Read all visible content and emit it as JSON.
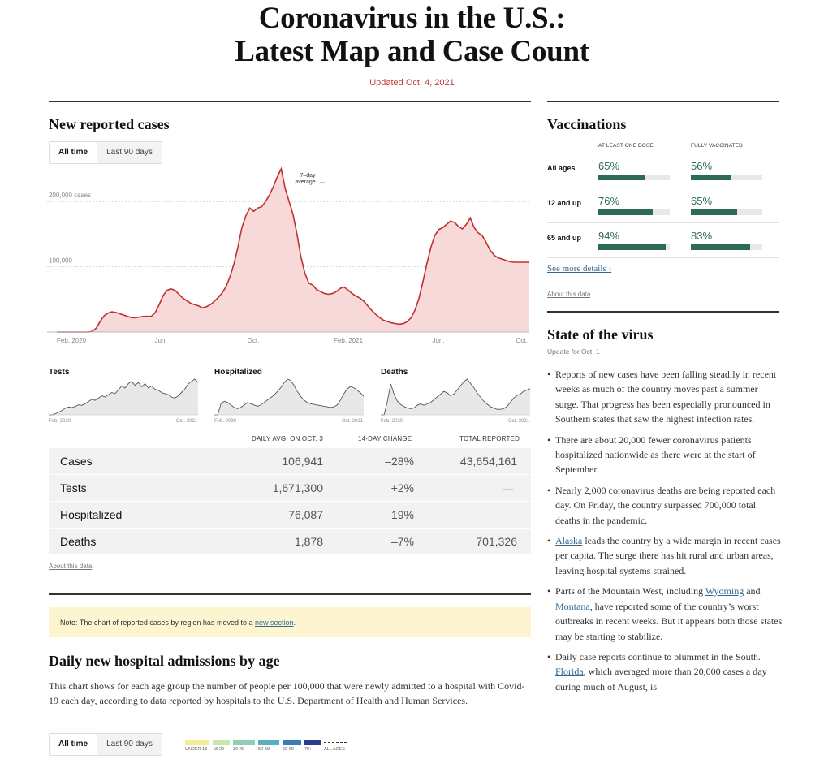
{
  "header": {
    "title_line1": "Coronavirus in the U.S.:",
    "title_line2": "Latest Map and Case Count",
    "updated": "Updated Oct. 4, 2021"
  },
  "cases_section": {
    "title": "New reported cases",
    "toggle": [
      "All time",
      "Last 90 days"
    ]
  },
  "chart_data": [
    {
      "type": "area",
      "title": "New reported cases",
      "annotation": "7–day average",
      "x_tick_labels": [
        "Feb. 2020",
        "Jun.",
        "Oct.",
        "Feb. 2021",
        "Jun.",
        "Oct."
      ],
      "y_tick_labels": [
        "200,000 cases",
        "100,000"
      ],
      "ylim": [
        0,
        260000
      ],
      "x_months": [
        0,
        1,
        2,
        3,
        4,
        5,
        6,
        7,
        8,
        9,
        10,
        11,
        12,
        13,
        14,
        15,
        16,
        17,
        18,
        19,
        20,
        21,
        22,
        23,
        24,
        25,
        26,
        27,
        28,
        29,
        30,
        31,
        32,
        33,
        34,
        35,
        36,
        37,
        38,
        39,
        40,
        41,
        42,
        43,
        44,
        45,
        46,
        47,
        48,
        49,
        50,
        51,
        52,
        53,
        54,
        55,
        56,
        57,
        58,
        59,
        60,
        61,
        62,
        63,
        64,
        65,
        66,
        67,
        68,
        69,
        70,
        71,
        72,
        73,
        74,
        75,
        76,
        77,
        78,
        79,
        80,
        81,
        82,
        83,
        84,
        85,
        86,
        87,
        88,
        89,
        90,
        91,
        92,
        93,
        94,
        95,
        96,
        97,
        98,
        99,
        100,
        101,
        102,
        103,
        104,
        105,
        106,
        107,
        108,
        109,
        110,
        111,
        112,
        113,
        114,
        115,
        116,
        117,
        118,
        119,
        120
      ],
      "values": [
        0,
        0,
        0,
        0,
        0,
        0,
        0,
        0,
        0,
        1000,
        6000,
        16000,
        25000,
        29000,
        31000,
        30000,
        28000,
        26000,
        24000,
        22000,
        22000,
        23000,
        24000,
        24000,
        24000,
        30000,
        42000,
        56000,
        64000,
        66000,
        64000,
        58000,
        52000,
        48000,
        44000,
        42000,
        40000,
        37000,
        39000,
        42000,
        47000,
        53000,
        60000,
        70000,
        85000,
        105000,
        130000,
        160000,
        178000,
        190000,
        185000,
        190000,
        192000,
        200000,
        210000,
        223000,
        238000,
        250000,
        220000,
        200000,
        180000,
        150000,
        115000,
        90000,
        75000,
        72000,
        65000,
        62000,
        59000,
        58000,
        59000,
        62000,
        67000,
        69000,
        64000,
        59000,
        55000,
        52000,
        47000,
        40000,
        33000,
        27000,
        22000,
        18000,
        16000,
        14000,
        13000,
        12000,
        13000,
        16000,
        22000,
        34000,
        52000,
        78000,
        105000,
        130000,
        148000,
        157000,
        160000,
        165000,
        170000,
        168000,
        162000,
        158000,
        165000,
        175000,
        160000,
        152000,
        148000,
        138000,
        126000,
        118000,
        114000,
        112000,
        110000,
        108000,
        107000,
        106941,
        106941,
        106941,
        106941
      ],
      "y_label_values": [
        200000,
        100000
      ]
    },
    {
      "type": "area",
      "title": "Tests",
      "x_tick_labels": [
        "Feb. 2020",
        "Oct. 2021"
      ],
      "values": [
        0,
        0,
        2,
        5,
        8,
        12,
        14,
        13,
        15,
        18,
        17,
        20,
        24,
        28,
        26,
        30,
        34,
        32,
        36,
        40,
        38,
        45,
        52,
        48,
        56,
        60,
        53,
        58,
        50,
        56,
        48,
        52,
        46,
        44,
        40,
        38,
        36,
        32,
        30,
        34,
        40,
        46,
        55,
        60,
        64,
        58
      ]
    },
    {
      "type": "area",
      "title": "Hospitalized",
      "x_tick_labels": [
        "Feb. 2020",
        "Oct. 2021"
      ],
      "values": [
        0,
        0,
        18,
        22,
        20,
        16,
        12,
        10,
        12,
        16,
        20,
        18,
        16,
        14,
        16,
        20,
        24,
        28,
        32,
        38,
        44,
        52,
        58,
        56,
        48,
        38,
        30,
        24,
        20,
        18,
        17,
        16,
        15,
        14,
        13,
        12,
        13,
        16,
        24,
        34,
        42,
        46,
        44,
        40,
        36,
        30
      ]
    },
    {
      "type": "area",
      "title": "Deaths",
      "x_tick_labels": [
        "Feb. 2020",
        "Oct. 2021"
      ],
      "values": [
        0,
        0,
        20,
        45,
        30,
        20,
        15,
        12,
        10,
        9,
        10,
        14,
        16,
        14,
        16,
        18,
        22,
        26,
        30,
        34,
        32,
        28,
        30,
        36,
        42,
        48,
        52,
        46,
        40,
        32,
        26,
        20,
        16,
        12,
        10,
        8,
        8,
        9,
        12,
        18,
        24,
        28,
        30,
        34,
        36,
        38
      ]
    }
  ],
  "mini_charts": {
    "tests": {
      "title": "Tests",
      "x_start": "Feb. 2020",
      "x_end": "Oct. 2021"
    },
    "hospitalized": {
      "title": "Hospitalized",
      "x_start": "Feb. 2020",
      "x_end": "Oct. 2021"
    },
    "deaths": {
      "title": "Deaths",
      "x_start": "Feb. 2020",
      "x_end": "Oct. 2021"
    }
  },
  "summary_table": {
    "headers": [
      "DAILY AVG. ON OCT. 3",
      "14-DAY CHANGE",
      "TOTAL REPORTED"
    ],
    "rows": [
      {
        "label": "Cases",
        "daily": "106,941",
        "change": "–28%",
        "total": "43,654,161"
      },
      {
        "label": "Tests",
        "daily": "1,671,300",
        "change": "+2%",
        "total": ""
      },
      {
        "label": "Hospitalized",
        "daily": "76,087",
        "change": "–19%",
        "total": ""
      },
      {
        "label": "Deaths",
        "daily": "1,878",
        "change": "–7%",
        "total": "701,326"
      }
    ],
    "about": "About this data"
  },
  "note": {
    "text": "Note: The chart of reported cases by region has moved to a ",
    "link": "new section",
    "end": "."
  },
  "hospital_section": {
    "title": "Daily new hospital admissions by age",
    "description": "This chart shows for each age group the number of people per 100,000 that were newly admitted to a hospital with Covid-19 each day, according to data reported by hospitals to the U.S. Department of Health and Human Services.",
    "toggle": [
      "All time",
      "Last 90 days"
    ],
    "legend": [
      {
        "label": "UNDER 18",
        "color": "#f3ec9b"
      },
      {
        "label": "18-29",
        "color": "#cde6a9"
      },
      {
        "label": "30-49",
        "color": "#8fcfb4"
      },
      {
        "label": "50-59",
        "color": "#57afc1"
      },
      {
        "label": "60-69",
        "color": "#3b7cb6"
      },
      {
        "label": "70+",
        "color": "#2a3a8f"
      },
      {
        "label": "ALL AGES",
        "color": "#333333"
      }
    ]
  },
  "vaccinations": {
    "title": "Vaccinations",
    "col1": "AT LEAST ONE DOSE",
    "col2": "FULLY VACCINATED",
    "rows": [
      {
        "label": "All ages",
        "one_dose": "65%",
        "one_dose_frac": 0.65,
        "full": "56%",
        "full_frac": 0.56
      },
      {
        "label": "12 and up",
        "one_dose": "76%",
        "one_dose_frac": 0.76,
        "full": "65%",
        "full_frac": 0.65
      },
      {
        "label": "65 and up",
        "one_dose": "94%",
        "one_dose_frac": 0.94,
        "full": "83%",
        "full_frac": 0.83
      }
    ],
    "details_link": "See more details ›",
    "about": "About this data"
  },
  "state_of_virus": {
    "title": "State of the virus",
    "updated": "Update for Oct. 1",
    "bullets": [
      {
        "parts": [
          {
            "t": "Reports of new cases have been falling steadily in recent weeks as much of the country moves past a summer surge. That progress has been especially pronounced in Southern states that saw the highest infection rates."
          }
        ]
      },
      {
        "parts": [
          {
            "t": "There are about 20,000 fewer coronavirus patients hospitalized nationwide as there were at the start of September."
          }
        ]
      },
      {
        "parts": [
          {
            "t": "Nearly 2,000 coronavirus deaths are being reported each day. On Friday, the country surpassed 700,000 total deaths in the pandemic."
          }
        ]
      },
      {
        "parts": [
          {
            "t": "Alaska",
            "link": true
          },
          {
            "t": " leads the country by a wide margin in recent cases per capita. The surge there has hit rural and urban areas, leaving hospital systems strained."
          }
        ]
      },
      {
        "parts": [
          {
            "t": "Parts of the Mountain West, including "
          },
          {
            "t": "Wyoming",
            "link": true
          },
          {
            "t": " and "
          },
          {
            "t": "Montana",
            "link": true
          },
          {
            "t": ", have reported some of the country’s worst outbreaks in recent weeks. But it appears both those states may be starting to stabilize."
          }
        ]
      },
      {
        "parts": [
          {
            "t": "Daily case reports continue to plummet in the South. "
          },
          {
            "t": "Florida",
            "link": true
          },
          {
            "t": ", which averaged more than 20,000 cases a day during much of August, is"
          }
        ]
      }
    ]
  }
}
